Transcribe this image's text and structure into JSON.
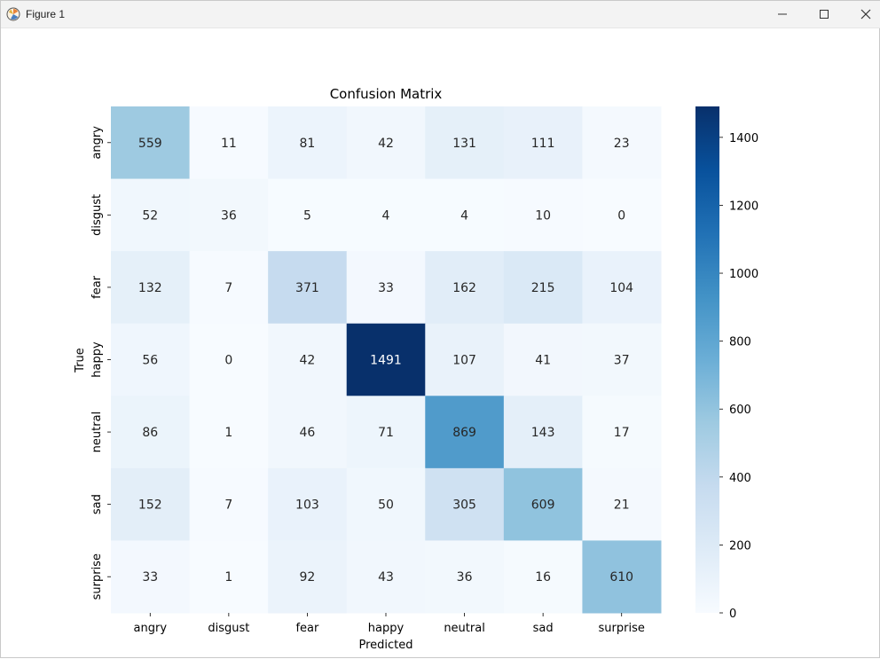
{
  "window": {
    "title": "Figure 1",
    "app_icon": "matplotlib-figure-icon",
    "controls": [
      "minimize-icon",
      "maximize-icon",
      "close-icon"
    ]
  },
  "chart_data": {
    "type": "heatmap",
    "title": "Confusion Matrix",
    "xlabel": "Predicted",
    "ylabel": "True",
    "x_categories": [
      "angry",
      "disgust",
      "fear",
      "happy",
      "neutral",
      "sad",
      "surprise"
    ],
    "y_categories": [
      "angry",
      "disgust",
      "fear",
      "happy",
      "neutral",
      "sad",
      "surprise"
    ],
    "values": [
      [
        559,
        11,
        81,
        42,
        131,
        111,
        23
      ],
      [
        52,
        36,
        5,
        4,
        4,
        10,
        0
      ],
      [
        132,
        7,
        371,
        33,
        162,
        215,
        104
      ],
      [
        56,
        0,
        42,
        1491,
        107,
        41,
        37
      ],
      [
        86,
        1,
        46,
        71,
        869,
        143,
        17
      ],
      [
        152,
        7,
        103,
        50,
        305,
        609,
        21
      ],
      [
        33,
        1,
        92,
        43,
        36,
        16,
        610
      ]
    ],
    "colormap": "Blues",
    "colorbar": {
      "range": [
        0,
        1491
      ],
      "ticks": [
        0,
        200,
        400,
        600,
        800,
        1000,
        1200,
        1400
      ]
    },
    "grid": false,
    "legend": "colorbar-right"
  }
}
